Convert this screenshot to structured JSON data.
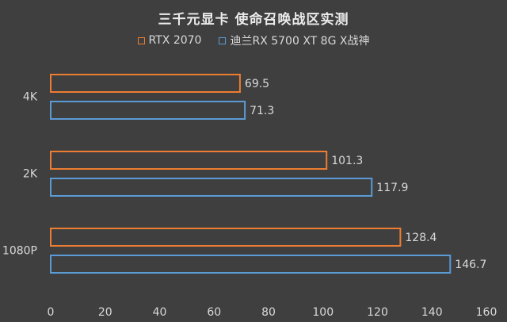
{
  "chart_data": {
    "type": "bar",
    "orientation": "horizontal",
    "title": "三千元显卡 使命召唤战区实测",
    "categories": [
      "4K",
      "2K",
      "1080P"
    ],
    "series": [
      {
        "name": "RTX 2070",
        "color": "#ed7d31",
        "values": [
          69.5,
          101.3,
          128.4
        ]
      },
      {
        "name": "迪兰RX 5700 XT 8G X战神",
        "color": "#5b9bd5",
        "values": [
          71.3,
          117.9,
          146.7
        ]
      }
    ],
    "xlim": [
      0,
      160
    ],
    "xticks": [
      "0",
      "20",
      "40",
      "60",
      "80",
      "100",
      "120",
      "140",
      "160"
    ],
    "grid": false,
    "legend_position": "top"
  }
}
